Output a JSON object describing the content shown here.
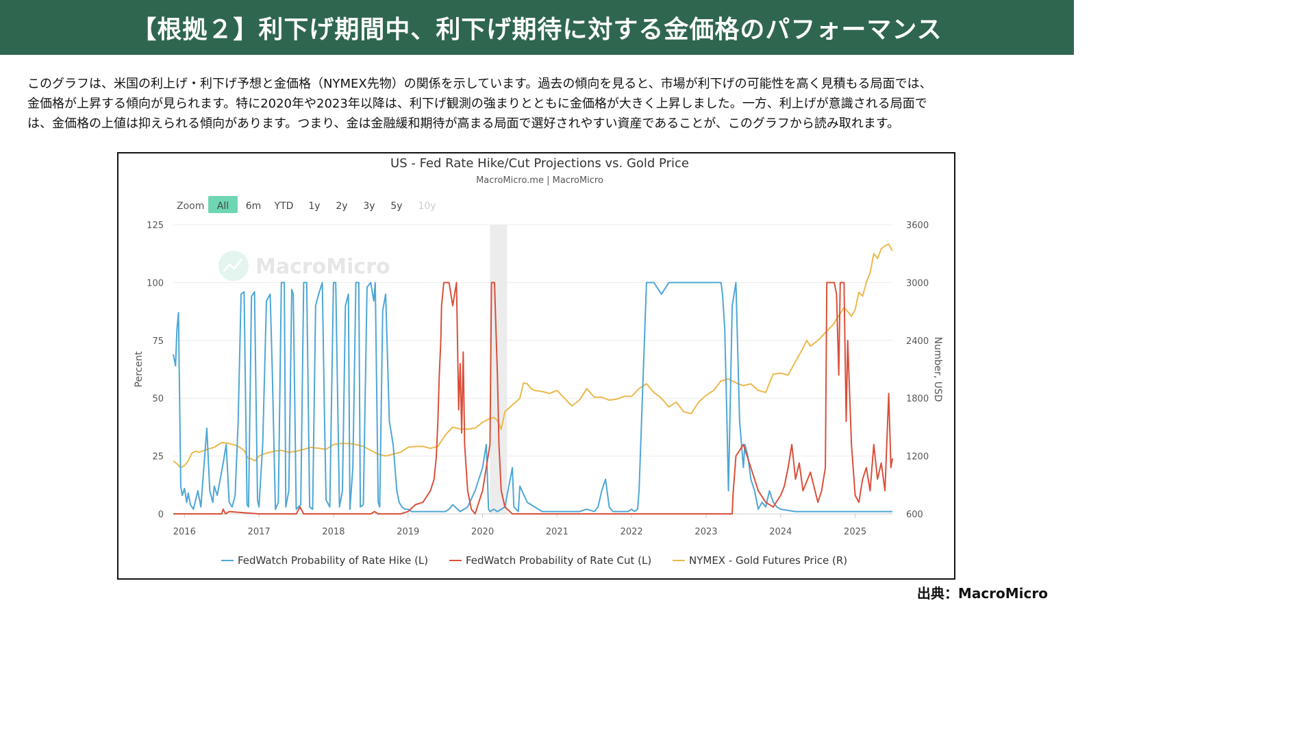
{
  "header": {
    "title": "【根拠２】利下げ期間中、利下げ期待に対する金価格のパフォーマンス"
  },
  "intro": {
    "lines": [
      "このグラフは、米国の利上げ・利下げ予想と金価格（NYMEX先物）の関係を示しています。過去の傾向を見ると、市場が利下げの可能性を高く見積もる局面では、",
      "金価格が上昇する傾向が見られます。特に2020年や2023年以降は、利下げ観測の強まりとともに金価格が大きく上昇しました。一方、利上げが意識される局面で",
      "は、金価格の上値は抑えられる傾向があります。つまり、金は金融緩和期待が高まる局面で選好されやすい資産であることが、このグラフから読み取れます。"
    ]
  },
  "zoom": {
    "label": "Zoom",
    "options": [
      "All",
      "6m",
      "YTD",
      "1y",
      "2y",
      "3y",
      "5y",
      "10y"
    ],
    "selected": "All",
    "disabled": [
      "10y"
    ]
  },
  "watermark": "MacroMicro",
  "source": "出典：MacroMicro",
  "colors": {
    "banner": "#2f6650",
    "hike": "#4da6d6",
    "cut": "#d94f3a",
    "gold": "#ecb84a",
    "zoom_active": "#6fd6b4"
  },
  "chart_data": {
    "type": "line",
    "title": "US - Fed Rate Hike/Cut Projections vs. Gold Price",
    "subtitle": "MacroMicro.me | MacroMicro",
    "ylabel_left": "Percent",
    "ylabel_right": "Number, USD",
    "ylim_left": [
      0,
      125
    ],
    "ylim_right": [
      600,
      3600
    ],
    "left_ticks": [
      0,
      25,
      50,
      75,
      100,
      125
    ],
    "right_ticks": [
      600,
      1200,
      1800,
      2400,
      3000,
      3600
    ],
    "x_ticks": [
      "2016",
      "2017",
      "2018",
      "2019",
      "2020",
      "2021",
      "2022",
      "2023",
      "2024",
      "2025"
    ],
    "x_range": [
      2015.85,
      2025.5
    ],
    "shaded_period": [
      2020.1,
      2020.33
    ],
    "legend_position": "bottom",
    "grid": "horizontal",
    "series": [
      {
        "name": "FedWatch Probability of Rate Hike (L)",
        "axis": "left",
        "color": "#4da6d6",
        "x": [
          2015.85,
          2015.88,
          2015.9,
          2015.92,
          2015.95,
          2015.97,
          2016.0,
          2016.03,
          2016.05,
          2016.08,
          2016.12,
          2016.18,
          2016.22,
          2016.26,
          2016.3,
          2016.34,
          2016.38,
          2016.4,
          2016.44,
          2016.48,
          2016.52,
          2016.56,
          2016.6,
          2016.64,
          2016.68,
          2016.72,
          2016.76,
          2016.8,
          2016.84,
          2016.86,
          2016.9,
          2016.94,
          2016.98,
          2017.0,
          2017.05,
          2017.1,
          2017.15,
          2017.18,
          2017.22,
          2017.26,
          2017.3,
          2017.34,
          2017.36,
          2017.4,
          2017.44,
          2017.46,
          2017.5,
          2017.56,
          2017.6,
          2017.64,
          2017.68,
          2017.72,
          2017.76,
          2017.8,
          2017.85,
          2017.88,
          2017.9,
          2017.95,
          2018.0,
          2018.03,
          2018.08,
          2018.12,
          2018.16,
          2018.2,
          2018.22,
          2018.26,
          2018.3,
          2018.34,
          2018.36,
          2018.4,
          2018.45,
          2018.5,
          2018.54,
          2018.56,
          2018.6,
          2018.62,
          2018.66,
          2018.7,
          2018.75,
          2018.8,
          2018.85,
          2018.88,
          2018.92,
          2018.96,
          2019.0,
          2019.05,
          2019.1,
          2019.2,
          2019.3,
          2019.4,
          2019.45,
          2019.5,
          2019.55,
          2019.6,
          2019.7,
          2019.8,
          2019.9,
          2020.0,
          2020.05,
          2020.08,
          2020.1,
          2020.15,
          2020.2,
          2020.3,
          2020.4,
          2020.42,
          2020.45,
          2020.48,
          2020.5,
          2020.6,
          2020.7,
          2020.8,
          2020.9,
          2021.0,
          2021.1,
          2021.2,
          2021.3,
          2021.4,
          2021.5,
          2021.55,
          2021.6,
          2021.65,
          2021.7,
          2021.75,
          2021.8,
          2021.85,
          2021.9,
          2021.95,
          2022.0,
          2022.04,
          2022.08,
          2022.1,
          2022.2,
          2022.3,
          2022.4,
          2022.5,
          2022.6,
          2022.7,
          2022.8,
          2022.9,
          2023.0,
          2023.05,
          2023.1,
          2023.18,
          2023.2,
          2023.22,
          2023.25,
          2023.28,
          2023.3,
          2023.35,
          2023.4,
          2023.45,
          2023.5,
          2023.52,
          2023.56,
          2023.6,
          2023.65,
          2023.7,
          2023.75,
          2023.8,
          2023.85,
          2023.9,
          2023.95,
          2024.0,
          2024.2,
          2024.4,
          2024.6,
          2024.8,
          2025.0,
          2025.2,
          2025.4,
          2025.5
        ],
        "values": [
          69,
          64,
          80,
          87,
          12,
          8,
          11,
          5,
          9,
          4,
          2,
          10,
          3,
          20,
          37,
          10,
          5,
          12,
          8,
          15,
          22,
          30,
          5,
          3,
          8,
          40,
          95,
          96,
          4,
          3,
          94,
          96,
          6,
          3,
          30,
          92,
          95,
          60,
          2,
          5,
          100,
          100,
          3,
          10,
          97,
          95,
          2,
          4,
          100,
          100,
          3,
          2,
          90,
          95,
          100,
          40,
          6,
          3,
          100,
          100,
          3,
          10,
          90,
          95,
          2,
          20,
          100,
          100,
          3,
          4,
          98,
          100,
          92,
          100,
          5,
          3,
          88,
          95,
          40,
          30,
          10,
          5,
          3,
          2,
          2,
          1,
          1,
          1,
          1,
          1,
          1,
          1,
          2,
          4,
          1,
          3,
          10,
          20,
          30,
          2,
          1,
          2,
          1,
          3,
          20,
          3,
          2,
          1,
          12,
          5,
          3,
          1,
          1,
          1,
          1,
          1,
          1,
          2,
          1,
          3,
          10,
          15,
          3,
          1,
          1,
          1,
          1,
          1,
          2,
          1,
          2,
          10,
          100,
          100,
          95,
          100,
          100,
          100,
          100,
          100,
          100,
          100,
          100,
          100,
          100,
          95,
          80,
          40,
          10,
          90,
          100,
          40,
          20,
          30,
          25,
          15,
          10,
          2,
          5,
          3,
          10,
          5,
          3,
          2,
          1,
          1,
          1,
          1,
          1,
          1,
          1,
          1
        ]
      },
      {
        "name": "FedWatch Probability of Rate Cut (L)",
        "axis": "left",
        "color": "#d94f3a",
        "x": [
          2015.85,
          2016.5,
          2016.52,
          2016.55,
          2016.6,
          2017.0,
          2017.5,
          2017.55,
          2017.6,
          2018.0,
          2018.5,
          2018.55,
          2018.6,
          2018.9,
          2019.0,
          2019.1,
          2019.2,
          2019.3,
          2019.35,
          2019.38,
          2019.4,
          2019.42,
          2019.44,
          2019.45,
          2019.48,
          2019.5,
          2019.52,
          2019.55,
          2019.6,
          2019.65,
          2019.68,
          2019.7,
          2019.72,
          2019.74,
          2019.76,
          2019.8,
          2019.85,
          2019.9,
          2019.95,
          2020.0,
          2020.05,
          2020.1,
          2020.12,
          2020.14,
          2020.16,
          2020.18,
          2020.2,
          2020.22,
          2020.25,
          2020.3,
          2020.4,
          2020.6,
          2020.8,
          2021.0,
          2021.5,
          2022.0,
          2022.5,
          2023.0,
          2023.2,
          2023.3,
          2023.35,
          2023.36,
          2023.4,
          2023.5,
          2023.6,
          2023.7,
          2023.8,
          2023.9,
          2024.0,
          2024.05,
          2024.1,
          2024.15,
          2024.2,
          2024.25,
          2024.3,
          2024.4,
          2024.5,
          2024.55,
          2024.6,
          2024.62,
          2024.65,
          2024.7,
          2024.72,
          2024.75,
          2024.78,
          2024.8,
          2024.85,
          2024.88,
          2024.9,
          2024.95,
          2025.0,
          2025.05,
          2025.1,
          2025.15,
          2025.2,
          2025.25,
          2025.3,
          2025.35,
          2025.4,
          2025.45,
          2025.48,
          2025.5
        ],
        "values": [
          0,
          0,
          2,
          0,
          1,
          0,
          0,
          3,
          0,
          0,
          0,
          1,
          0,
          0,
          1,
          4,
          5,
          10,
          15,
          25,
          40,
          60,
          75,
          90,
          100,
          100,
          100,
          100,
          90,
          100,
          45,
          65,
          35,
          70,
          30,
          10,
          2,
          0,
          5,
          10,
          20,
          30,
          100,
          100,
          100,
          80,
          60,
          30,
          10,
          3,
          0,
          0,
          0,
          0,
          0,
          0,
          0,
          0,
          0,
          0,
          0,
          8,
          25,
          30,
          20,
          10,
          5,
          3,
          8,
          12,
          20,
          30,
          15,
          22,
          10,
          18,
          5,
          10,
          20,
          100,
          100,
          100,
          100,
          95,
          60,
          100,
          100,
          40,
          75,
          30,
          8,
          5,
          15,
          20,
          10,
          30,
          15,
          22,
          10,
          52,
          20,
          24
        ]
      },
      {
        "name": "NYMEX - Gold Futures Price (R)",
        "axis": "right",
        "color": "#ecb84a",
        "x": [
          2015.85,
          2015.9,
          2015.95,
          2016.0,
          2016.05,
          2016.1,
          2016.15,
          2016.2,
          2016.3,
          2016.4,
          2016.5,
          2016.6,
          2016.7,
          2016.8,
          2016.85,
          2016.9,
          2016.95,
          2017.0,
          2017.1,
          2017.2,
          2017.3,
          2017.4,
          2017.5,
          2017.6,
          2017.7,
          2017.8,
          2017.9,
          2018.0,
          2018.1,
          2018.2,
          2018.3,
          2018.4,
          2018.5,
          2018.6,
          2018.7,
          2018.8,
          2018.9,
          2019.0,
          2019.1,
          2019.2,
          2019.3,
          2019.4,
          2019.5,
          2019.6,
          2019.7,
          2019.8,
          2019.9,
          2020.0,
          2020.1,
          2020.15,
          2020.2,
          2020.25,
          2020.3,
          2020.4,
          2020.5,
          2020.55,
          2020.6,
          2020.65,
          2020.7,
          2020.8,
          2020.9,
          2021.0,
          2021.1,
          2021.2,
          2021.3,
          2021.4,
          2021.5,
          2021.6,
          2021.7,
          2021.8,
          2021.9,
          2022.0,
          2022.1,
          2022.2,
          2022.3,
          2022.4,
          2022.5,
          2022.6,
          2022.7,
          2022.8,
          2022.9,
          2023.0,
          2023.1,
          2023.2,
          2023.3,
          2023.4,
          2023.5,
          2023.6,
          2023.7,
          2023.8,
          2023.9,
          2024.0,
          2024.1,
          2024.2,
          2024.3,
          2024.35,
          2024.4,
          2024.5,
          2024.6,
          2024.7,
          2024.8,
          2024.85,
          2024.9,
          2024.95,
          2025.0,
          2025.05,
          2025.1,
          2025.15,
          2025.2,
          2025.25,
          2025.3,
          2025.35,
          2025.4,
          2025.45,
          2025.5
        ],
        "values": [
          1150,
          1120,
          1080,
          1100,
          1150,
          1230,
          1250,
          1240,
          1270,
          1290,
          1340,
          1330,
          1310,
          1260,
          1180,
          1170,
          1150,
          1200,
          1230,
          1250,
          1260,
          1240,
          1250,
          1270,
          1290,
          1280,
          1270,
          1320,
          1330,
          1330,
          1320,
          1300,
          1260,
          1220,
          1200,
          1220,
          1240,
          1290,
          1300,
          1300,
          1280,
          1300,
          1420,
          1500,
          1480,
          1480,
          1490,
          1550,
          1590,
          1600,
          1570,
          1480,
          1660,
          1730,
          1800,
          1960,
          1950,
          1900,
          1880,
          1870,
          1850,
          1880,
          1800,
          1720,
          1780,
          1900,
          1810,
          1810,
          1780,
          1790,
          1820,
          1820,
          1900,
          1950,
          1860,
          1800,
          1710,
          1760,
          1660,
          1640,
          1760,
          1830,
          1880,
          1980,
          2000,
          1960,
          1930,
          1950,
          1880,
          1860,
          2050,
          2060,
          2040,
          2180,
          2320,
          2400,
          2340,
          2400,
          2480,
          2560,
          2680,
          2740,
          2700,
          2650,
          2720,
          2900,
          2860,
          3000,
          3100,
          3300,
          3250,
          3350,
          3380,
          3400,
          3330
        ]
      }
    ]
  }
}
